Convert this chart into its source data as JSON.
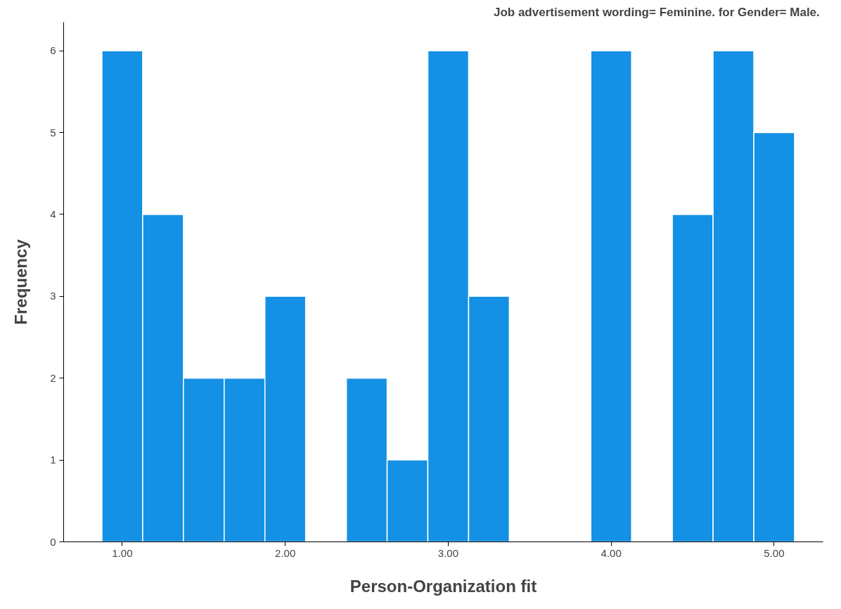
{
  "chart_data": {
    "type": "histogram",
    "title": "Job advertisement wording= Feminine.  for Gender= Male.",
    "xlabel": "Person-Organization fit",
    "ylabel": "Frequency",
    "bins": [
      0.875,
      1.125,
      1.375,
      1.625,
      1.875,
      2.125,
      2.375,
      2.625,
      2.875,
      3.125,
      3.375,
      3.625,
      3.875,
      4.125,
      4.375,
      4.625,
      4.875,
      5.125
    ],
    "values": [
      6,
      4,
      2,
      2,
      3,
      0,
      2,
      1,
      6,
      3,
      0,
      0,
      6,
      0,
      4,
      6,
      5
    ],
    "color": "#1490e4",
    "xlim": [
      0.64,
      5.3
    ],
    "ylim": [
      0,
      6.35
    ],
    "xticks": [
      {
        "value": 1,
        "label": "1.00"
      },
      {
        "value": 2,
        "label": "2.00"
      },
      {
        "value": 3,
        "label": "3.00"
      },
      {
        "value": 4,
        "label": "4.00"
      },
      {
        "value": 5,
        "label": "5.00"
      }
    ],
    "yticks": [
      0,
      1,
      2,
      3,
      4,
      5,
      6
    ],
    "grid": false
  }
}
